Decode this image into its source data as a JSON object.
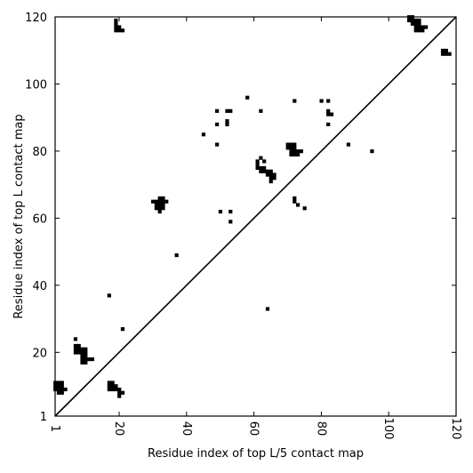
{
  "chart_data": {
    "type": "scatter",
    "title": "",
    "xlabel": "Residue index of top L/5 contact map",
    "ylabel": "Residue index of top L contact map",
    "xlim": [
      1,
      120
    ],
    "ylim": [
      1,
      120
    ],
    "xticks": [
      1,
      20,
      40,
      60,
      80,
      100,
      120
    ],
    "yticks": [
      1,
      20,
      40,
      60,
      80,
      100,
      120
    ],
    "diagonal": true,
    "grid": false,
    "marker_color": "#000000",
    "series": [
      {
        "name": "",
        "points": [
          [
            1,
            9
          ],
          [
            1,
            10
          ],
          [
            1,
            11
          ],
          [
            2,
            8
          ],
          [
            2,
            9
          ],
          [
            2,
            10
          ],
          [
            2,
            11
          ],
          [
            3,
            9
          ],
          [
            3,
            10
          ],
          [
            3,
            11
          ],
          [
            3,
            8
          ],
          [
            4,
            9
          ],
          [
            7,
            24
          ],
          [
            7,
            20
          ],
          [
            7,
            21
          ],
          [
            7,
            22
          ],
          [
            8,
            20
          ],
          [
            8,
            21
          ],
          [
            8,
            22
          ],
          [
            9,
            17
          ],
          [
            9,
            18
          ],
          [
            9,
            19
          ],
          [
            9,
            20
          ],
          [
            9,
            21
          ],
          [
            10,
            17
          ],
          [
            10,
            18
          ],
          [
            10,
            19
          ],
          [
            10,
            20
          ],
          [
            10,
            21
          ],
          [
            11,
            18
          ],
          [
            12,
            18
          ],
          [
            17,
            37
          ],
          [
            17,
            9
          ],
          [
            17,
            10
          ],
          [
            17,
            11
          ],
          [
            18,
            10
          ],
          [
            18,
            11
          ],
          [
            18,
            9
          ],
          [
            19,
            9
          ],
          [
            19,
            10
          ],
          [
            20,
            7
          ],
          [
            20,
            8
          ],
          [
            20,
            9
          ],
          [
            21,
            8
          ],
          [
            21,
            27
          ],
          [
            19,
            116
          ],
          [
            19,
            117
          ],
          [
            19,
            118
          ],
          [
            19,
            119
          ],
          [
            20,
            116
          ],
          [
            20,
            117
          ],
          [
            21,
            116
          ],
          [
            30,
            65
          ],
          [
            31,
            63
          ],
          [
            31,
            64
          ],
          [
            31,
            65
          ],
          [
            32,
            62
          ],
          [
            32,
            63
          ],
          [
            32,
            64
          ],
          [
            32,
            65
          ],
          [
            32,
            66
          ],
          [
            33,
            63
          ],
          [
            33,
            64
          ],
          [
            33,
            65
          ],
          [
            33,
            66
          ],
          [
            34,
            65
          ],
          [
            37,
            49
          ],
          [
            45,
            85
          ],
          [
            49,
            82
          ],
          [
            49,
            88
          ],
          [
            49,
            92
          ],
          [
            50,
            62
          ],
          [
            52,
            88
          ],
          [
            52,
            89
          ],
          [
            52,
            92
          ],
          [
            53,
            92
          ],
          [
            53,
            62
          ],
          [
            53,
            59
          ],
          [
            58,
            96
          ],
          [
            61,
            75
          ],
          [
            61,
            76
          ],
          [
            61,
            77
          ],
          [
            62,
            74
          ],
          [
            62,
            75
          ],
          [
            62,
            78
          ],
          [
            62,
            92
          ],
          [
            63,
            74
          ],
          [
            63,
            75
          ],
          [
            63,
            77
          ],
          [
            64,
            73
          ],
          [
            64,
            74
          ],
          [
            64,
            33
          ],
          [
            65,
            71
          ],
          [
            65,
            72
          ],
          [
            65,
            73
          ],
          [
            65,
            74
          ],
          [
            66,
            72
          ],
          [
            66,
            73
          ],
          [
            70,
            81
          ],
          [
            70,
            82
          ],
          [
            71,
            79
          ],
          [
            71,
            80
          ],
          [
            71,
            81
          ],
          [
            71,
            82
          ],
          [
            72,
            79
          ],
          [
            72,
            80
          ],
          [
            72,
            81
          ],
          [
            72,
            82
          ],
          [
            72,
            95
          ],
          [
            72,
            66
          ],
          [
            72,
            65
          ],
          [
            73,
            79
          ],
          [
            73,
            80
          ],
          [
            73,
            64
          ],
          [
            74,
            80
          ],
          [
            75,
            63
          ],
          [
            80,
            95
          ],
          [
            82,
            88
          ],
          [
            82,
            91
          ],
          [
            82,
            92
          ],
          [
            82,
            95
          ],
          [
            83,
            91
          ],
          [
            88,
            82
          ],
          [
            95,
            80
          ],
          [
            106,
            119
          ],
          [
            106,
            120
          ],
          [
            107,
            118
          ],
          [
            107,
            119
          ],
          [
            107,
            120
          ],
          [
            108,
            116
          ],
          [
            108,
            117
          ],
          [
            108,
            118
          ],
          [
            108,
            119
          ],
          [
            109,
            116
          ],
          [
            109,
            117
          ],
          [
            109,
            118
          ],
          [
            109,
            119
          ],
          [
            110,
            116
          ],
          [
            110,
            117
          ],
          [
            111,
            117
          ],
          [
            116,
            109
          ],
          [
            116,
            110
          ],
          [
            117,
            109
          ],
          [
            117,
            110
          ],
          [
            118,
            109
          ]
        ]
      }
    ]
  }
}
